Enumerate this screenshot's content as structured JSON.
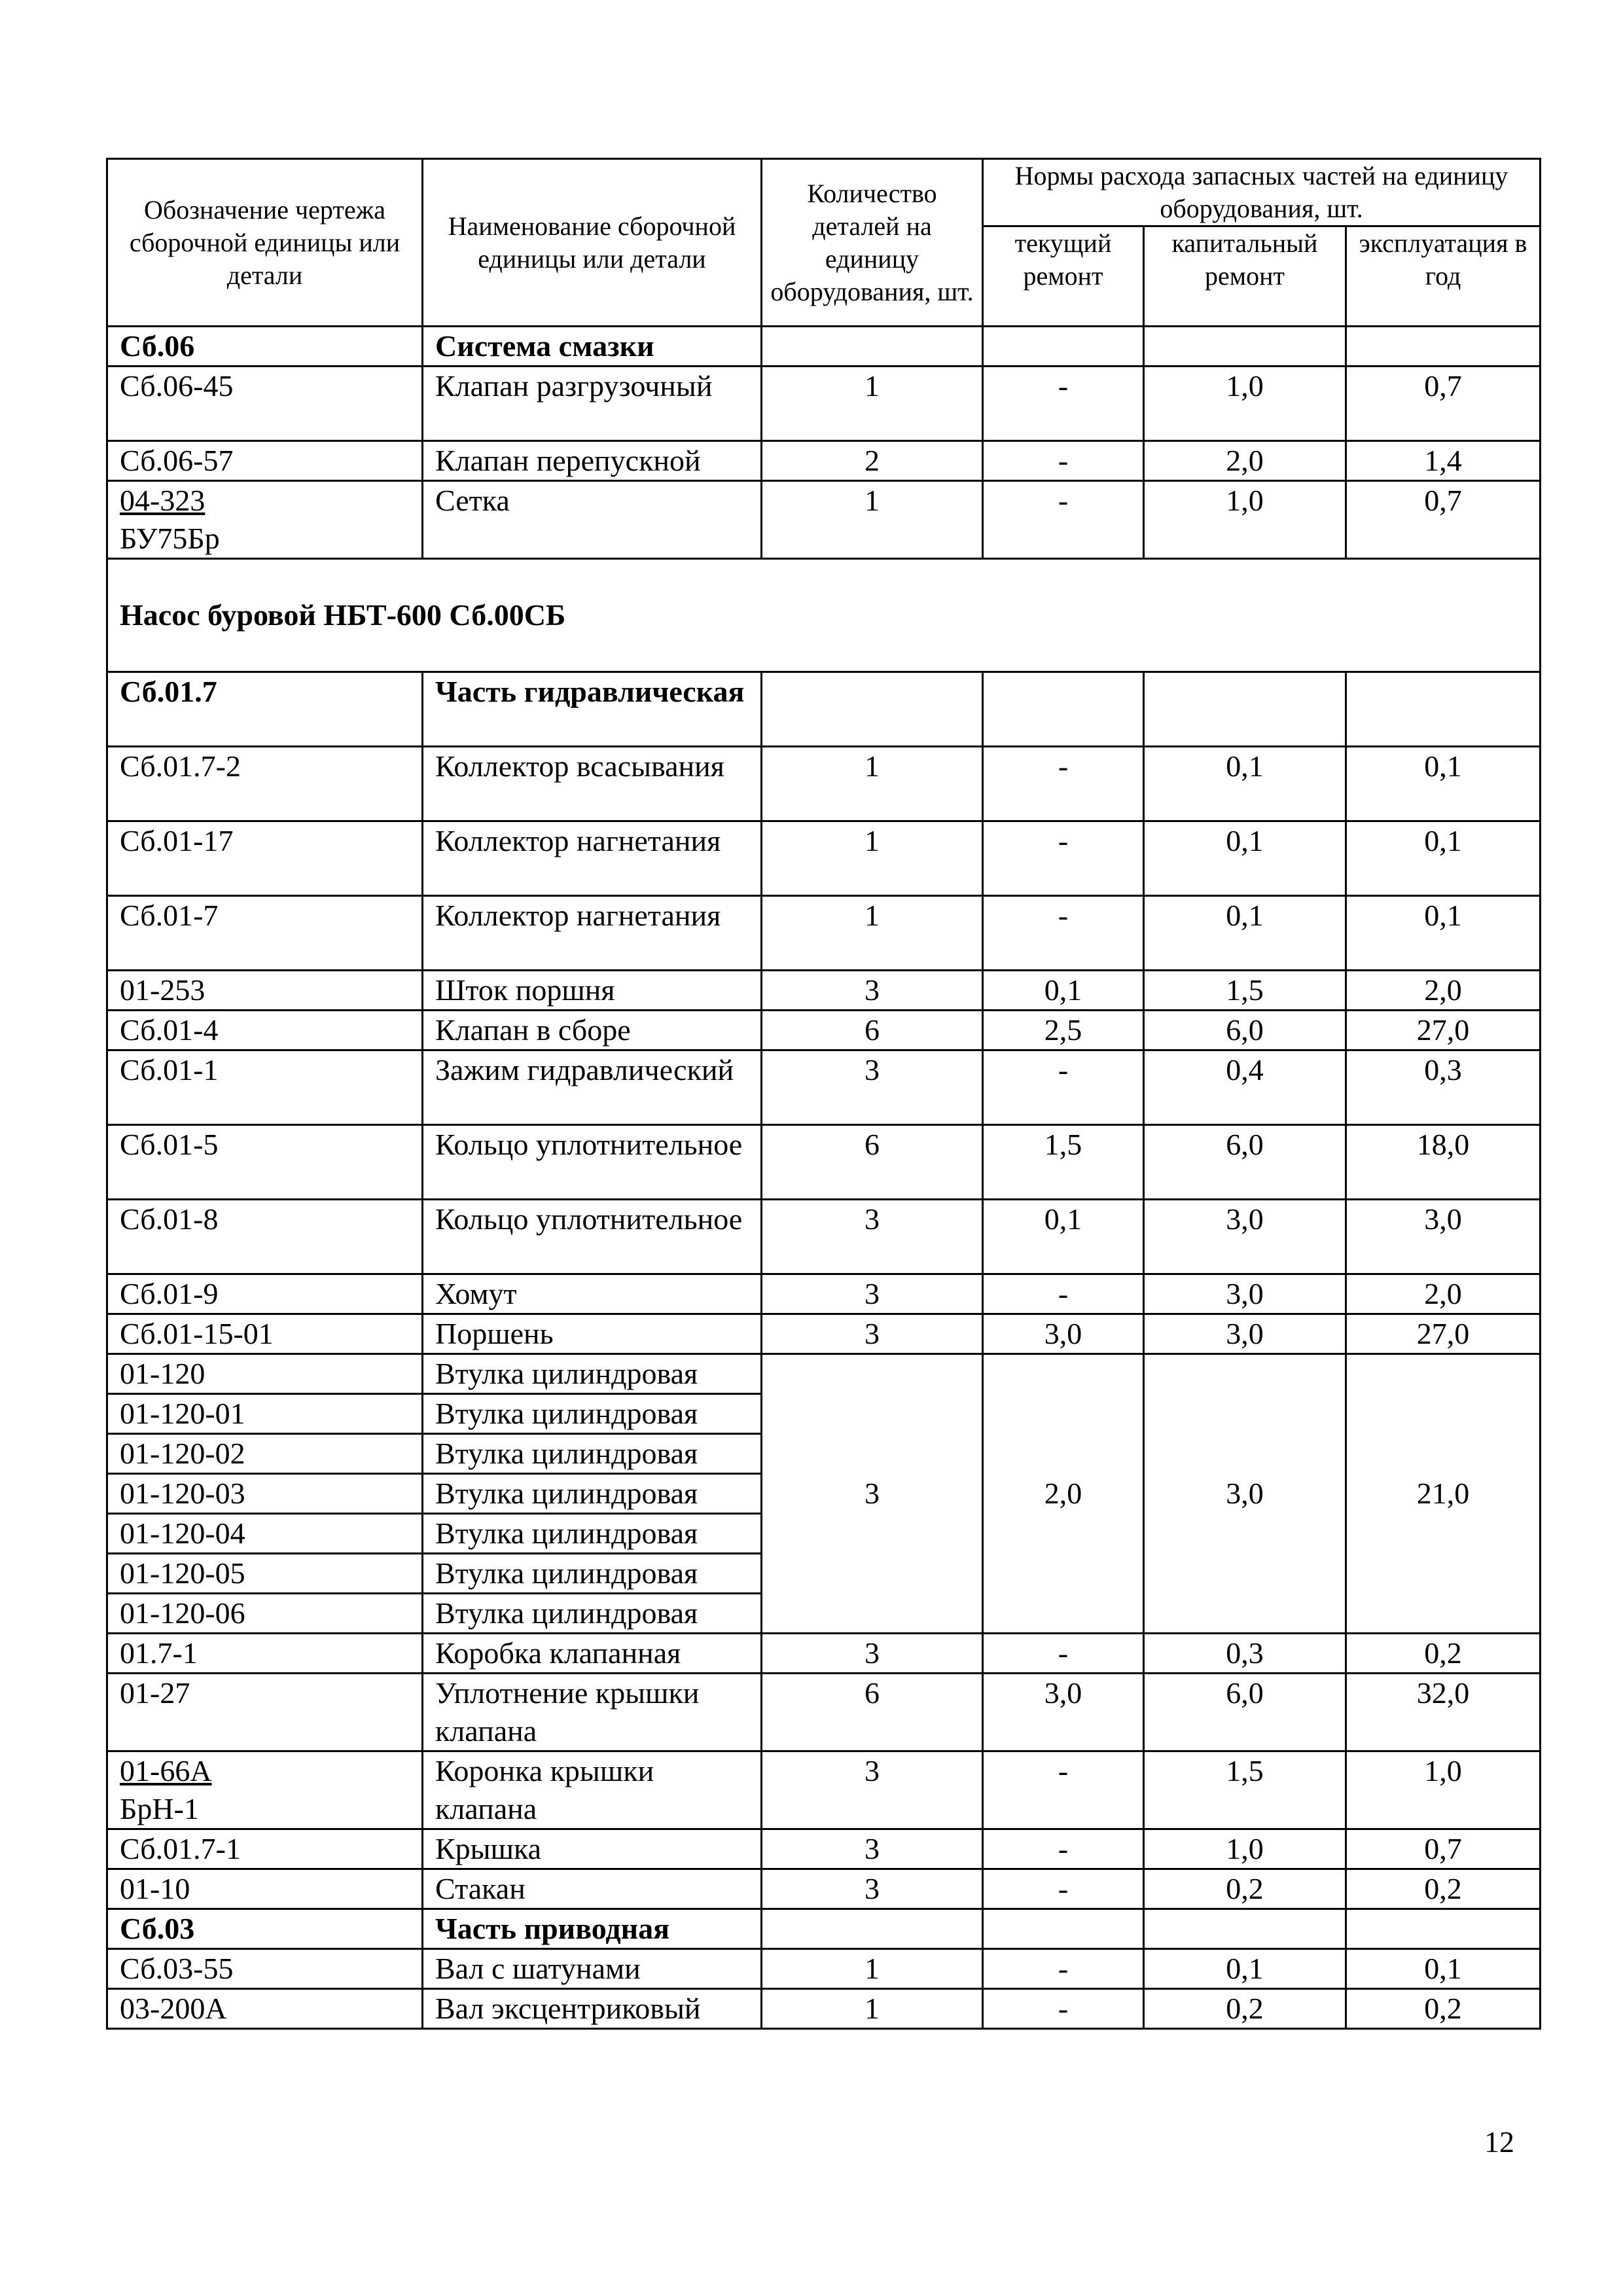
{
  "header": {
    "col_code": "Обозначение чертежа сборочной единицы или детали",
    "col_name": "Наименование сборочной единицы или детали",
    "col_qty": "Количество деталей на единицу оборудования, шт.",
    "col_norms": "Нормы расхода запасных частей на единицу оборудования, шт.",
    "col_current": "текущий ремонт",
    "col_capital": "капитальный ремонт",
    "col_operation": "эксплуатация в год"
  },
  "rows": [
    {
      "code": "Сб.06",
      "name": "Система смазки",
      "bold": true,
      "qty": "",
      "cur": "",
      "cap": "",
      "exp": "",
      "lines": 1
    },
    {
      "code": "Сб.06-45",
      "name": "Клапан разгрузочный",
      "qty": "1",
      "cur": "-",
      "cap": "1,0",
      "exp": "0,7",
      "lines": 2
    },
    {
      "code": "Сб.06-57",
      "name": "Клапан перепускной",
      "qty": "2",
      "cur": "-",
      "cap": "2,0",
      "exp": "1,4",
      "lines": 1
    },
    {
      "code": "04-323",
      "code2": "БУ75Бр",
      "name": "Сетка",
      "qty": "1",
      "cur": "-",
      "cap": "1,0",
      "exp": "0,7",
      "lines": 2
    },
    {
      "section": "Насос буровой НБТ-600 Сб.00СБ"
    },
    {
      "code": "Сб.01.7",
      "name": "Часть гидравлическая",
      "bold": true,
      "qty": "",
      "cur": "",
      "cap": "",
      "exp": "",
      "lines": 2
    },
    {
      "code": "Сб.01.7-2",
      "name": "Коллектор всасывания",
      "qty": "1",
      "cur": "-",
      "cap": "0,1",
      "exp": "0,1",
      "lines": 2
    },
    {
      "code": "Сб.01-17",
      "name": "Коллектор нагнетания",
      "qty": "1",
      "cur": "-",
      "cap": "0,1",
      "exp": "0,1",
      "lines": 2
    },
    {
      "code": "Сб.01-7",
      "name": "Коллектор нагнетания",
      "qty": "1",
      "cur": "-",
      "cap": "0,1",
      "exp": "0,1",
      "lines": 2
    },
    {
      "code": "01-253",
      "name": "Шток поршня",
      "qty": "3",
      "cur": "0,1",
      "cap": "1,5",
      "exp": "2,0",
      "lines": 1
    },
    {
      "code": "Сб.01-4",
      "name": "Клапан в сборе",
      "qty": "6",
      "cur": "2,5",
      "cap": "6,0",
      "exp": "27,0",
      "lines": 1
    },
    {
      "code": "Сб.01-1",
      "name": "Зажим гидравлический",
      "qty": "3",
      "cur": "-",
      "cap": "0,4",
      "exp": "0,3",
      "lines": 2
    },
    {
      "code": "Сб.01-5",
      "name": "Кольцо уплотнительное",
      "qty": "6",
      "cur": "1,5",
      "cap": "6,0",
      "exp": "18,0",
      "lines": 2
    },
    {
      "code": "Сб.01-8",
      "name": "Кольцо уплотнительное",
      "qty": "3",
      "cur": "0,1",
      "cap": "3,0",
      "exp": "3,0",
      "lines": 2
    },
    {
      "code": "Сб.01-9",
      "name": "Хомут",
      "qty": "3",
      "cur": "-",
      "cap": "3,0",
      "exp": "2,0",
      "lines": 1
    },
    {
      "code": "Сб.01-15-01",
      "name": "Поршень",
      "qty": "3",
      "cur": "3,0",
      "cap": "3,0",
      "exp": "27,0",
      "lines": 1
    },
    {
      "group": {
        "qty": "3",
        "cur": "2,0",
        "cap": "3,0",
        "exp": "21,0"
      },
      "items": [
        {
          "code": "01-120",
          "name": "Втулка цилиндровая"
        },
        {
          "code": "01-120-01",
          "name": "Втулка цилиндровая"
        },
        {
          "code": "01-120-02",
          "name": "Втулка цилиндровая"
        },
        {
          "code": "01-120-03",
          "name": "Втулка цилиндровая"
        },
        {
          "code": "01-120-04",
          "name": "Втулка цилиндровая"
        },
        {
          "code": "01-120-05",
          "name": "Втулка цилиндровая"
        },
        {
          "code": "01-120-06",
          "name": "Втулка цилиндровая"
        }
      ]
    },
    {
      "code": "01.7-1",
      "name": "Коробка клапанная",
      "qty": "3",
      "cur": "-",
      "cap": "0,3",
      "exp": "0,2",
      "lines": 1
    },
    {
      "code": "01-27",
      "name": "Уплотнение крышки клапана",
      "qty": "6",
      "cur": "3,0",
      "cap": "6,0",
      "exp": "32,0",
      "lines": 2
    },
    {
      "code": "01-66А",
      "code2": "БрН-1",
      "name": "Коронка крышки клапана",
      "qty": "3",
      "cur": "-",
      "cap": "1,5",
      "exp": "1,0",
      "lines": 2
    },
    {
      "code": "Сб.01.7-1",
      "name": "Крышка",
      "qty": "3",
      "cur": "-",
      "cap": "1,0",
      "exp": "0,7",
      "lines": 1
    },
    {
      "code": "01-10",
      "name": "Стакан",
      "qty": "3",
      "cur": "-",
      "cap": "0,2",
      "exp": "0,2",
      "lines": 1
    },
    {
      "code": "Сб.03",
      "name": "Часть приводная",
      "bold": true,
      "qty": "",
      "cur": "",
      "cap": "",
      "exp": "",
      "lines": 1
    },
    {
      "code": "Сб.03-55",
      "name": "Вал  с шатунами",
      "qty": "1",
      "cur": "-",
      "cap": "0,1",
      "exp": "0,1",
      "lines": 1
    },
    {
      "code": "03-200А",
      "name": "Вал эксцентриковый",
      "qty": "1",
      "cur": "-",
      "cap": "0,2",
      "exp": "0,2",
      "lines": 1
    }
  ],
  "page_number": "12"
}
